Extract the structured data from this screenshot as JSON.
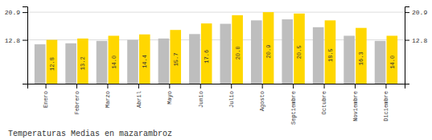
{
  "chart_data": {
    "type": "bar",
    "title": "Temperaturas Medias en mazarambroz",
    "categories": [
      "Enero",
      "Febrero",
      "Marzo",
      "Abril",
      "Mayo",
      "Junio",
      "Julio",
      "Agosto",
      "Septiembre",
      "Octubre",
      "Noviembre",
      "Diciembre"
    ],
    "series": [
      {
        "color": "#BEBEBE",
        "values": [
          11.5,
          11.8,
          12.5,
          12.8,
          13.2,
          14.5,
          17.5,
          18.5,
          18.8,
          16.5,
          14.0,
          12.5
        ]
      },
      {
        "color": "#FFD700",
        "values": [
          12.8,
          13.2,
          14.0,
          14.4,
          15.7,
          17.6,
          20.0,
          20.9,
          20.5,
          18.5,
          16.3,
          14.0
        ],
        "data_labels": true,
        "value_labels": [
          "12.8",
          "13.2",
          "14.0",
          "14.4",
          "15.7",
          "17.6",
          "20.0",
          "20.9",
          "20.5",
          "18.5",
          "16.3",
          "14.0"
        ]
      }
    ],
    "ylim": [
      0,
      22.572
    ],
    "yticks": [
      12.8,
      20.9
    ],
    "y2lim": [
      0,
      22.572
    ],
    "y2ticks": [
      12.8,
      20.9
    ],
    "grid": true
  }
}
